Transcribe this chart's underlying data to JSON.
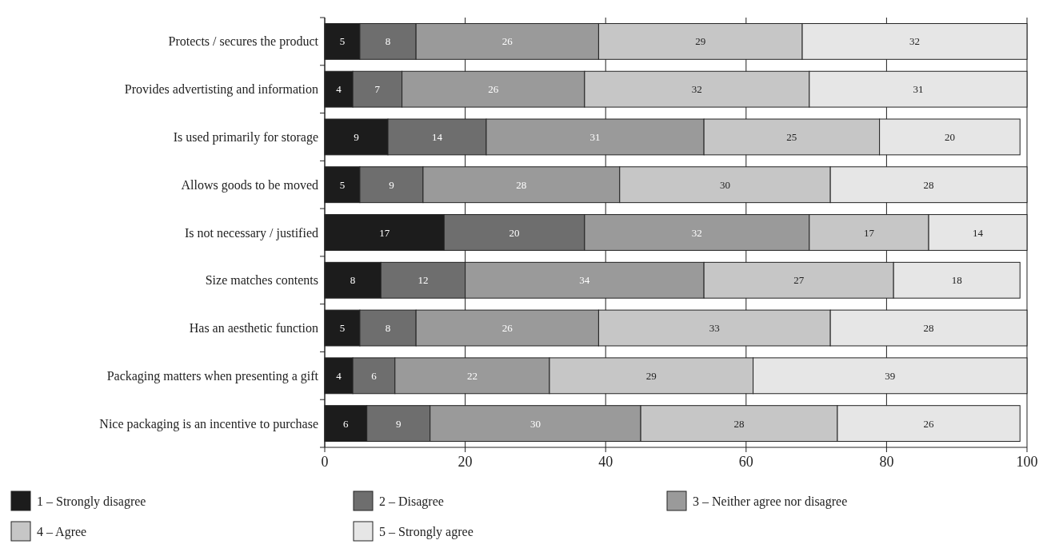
{
  "chart_data": {
    "type": "bar",
    "orientation": "horizontal",
    "stacked": true,
    "data_labels": true,
    "grid": "x",
    "legend": "bottom",
    "categories": [
      "Protects / secures the product",
      "Provides advertisting and information",
      "Is used primarily for storage",
      "Allows goods to be moved",
      "Is not necessary / justified",
      "Size matches contents",
      "Has an aesthetic function",
      "Packaging matters when presenting a gift",
      "Nice packaging is an incentive to purchase"
    ],
    "series": [
      {
        "name": "1 – Strongly disagree",
        "color": "#1c1c1c",
        "values": [
          5,
          4,
          9,
          5,
          17,
          8,
          5,
          4,
          6
        ]
      },
      {
        "name": "2 – Disagree",
        "color": "#6e6e6e",
        "values": [
          8,
          7,
          14,
          9,
          20,
          12,
          8,
          6,
          9
        ]
      },
      {
        "name": "3 – Neither agree nor disagree",
        "color": "#9a9a9a",
        "values": [
          26,
          26,
          31,
          28,
          32,
          34,
          26,
          22,
          30
        ]
      },
      {
        "name": "4 – Agree",
        "color": "#c6c6c6",
        "values": [
          29,
          32,
          25,
          30,
          17,
          27,
          33,
          29,
          28
        ]
      },
      {
        "name": "5 – Strongly agree",
        "color": "#e6e6e6",
        "values": [
          32,
          31,
          20,
          28,
          14,
          18,
          28,
          39,
          26
        ]
      }
    ],
    "xlim": [
      0,
      100
    ],
    "xticks": [
      0,
      20,
      40,
      60,
      80,
      100
    ]
  }
}
